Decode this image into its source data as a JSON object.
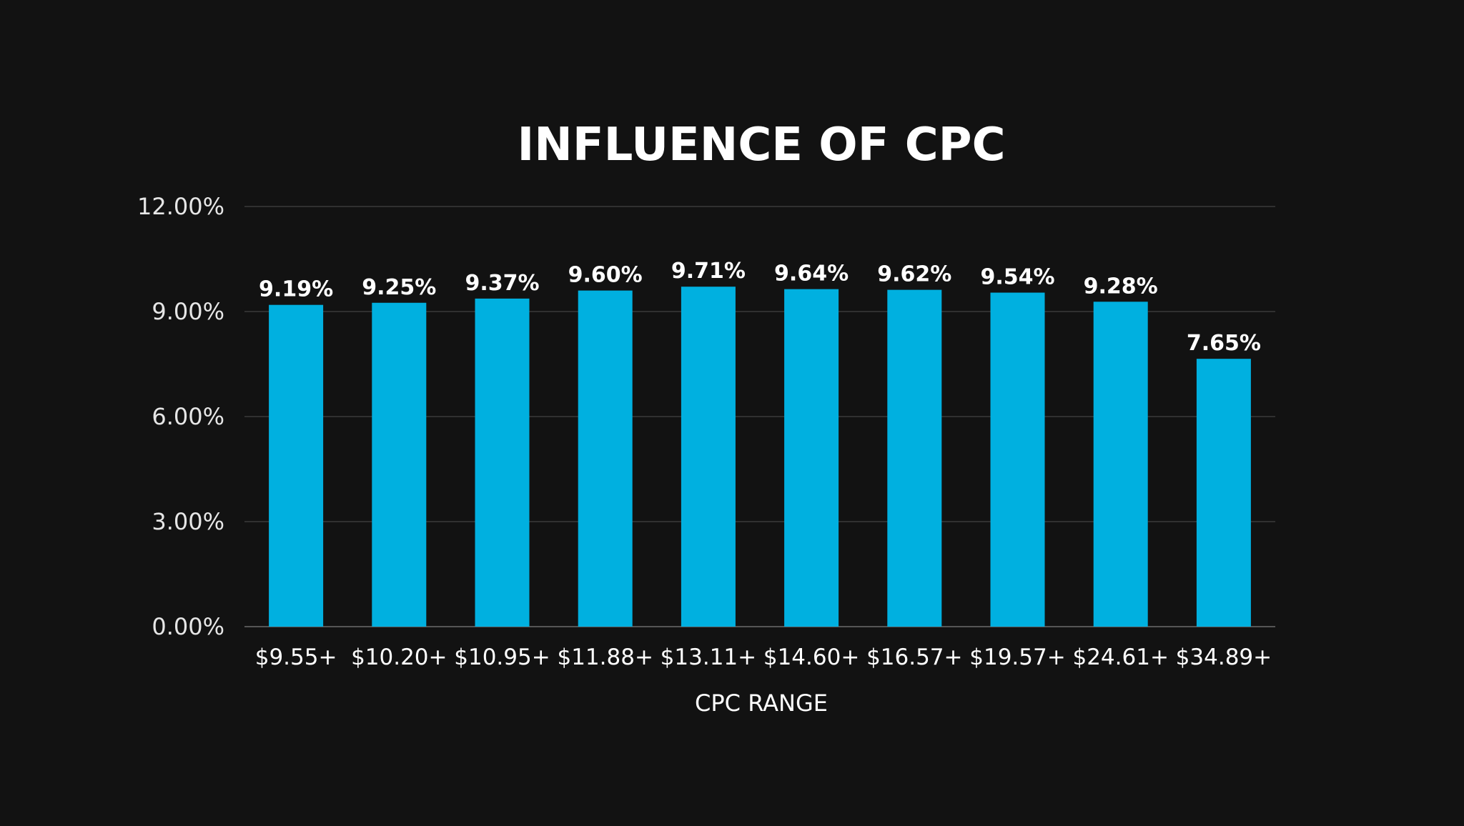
{
  "chart_data": {
    "type": "bar",
    "title": "INFLUENCE OF CPC",
    "xlabel": "CPC RANGE",
    "ylabel": "",
    "categories": [
      "$9.55+",
      "$10.20+",
      "$10.95+",
      "$11.88+",
      "$13.11+",
      "$14.60+",
      "$16.57+",
      "$19.57+",
      "$24.61+",
      "$34.89+"
    ],
    "values": [
      9.19,
      9.25,
      9.37,
      9.6,
      9.71,
      9.64,
      9.62,
      9.54,
      9.28,
      7.65
    ],
    "data_labels": [
      "9.19%",
      "9.25%",
      "9.37%",
      "9.60%",
      "9.71%",
      "9.64%",
      "9.62%",
      "9.54%",
      "9.28%",
      "7.65%"
    ],
    "ylim": [
      0,
      12
    ],
    "yticks": [
      0,
      3,
      6,
      9,
      12
    ],
    "ytick_labels": [
      "0.00%",
      "3.00%",
      "6.00%",
      "9.00%",
      "12.00%"
    ],
    "grid": true,
    "legend": "none",
    "colors": {
      "background": "#121212",
      "bar": "#00b0e0",
      "text": "#ffffff",
      "grid": "#3b3b3b"
    }
  }
}
